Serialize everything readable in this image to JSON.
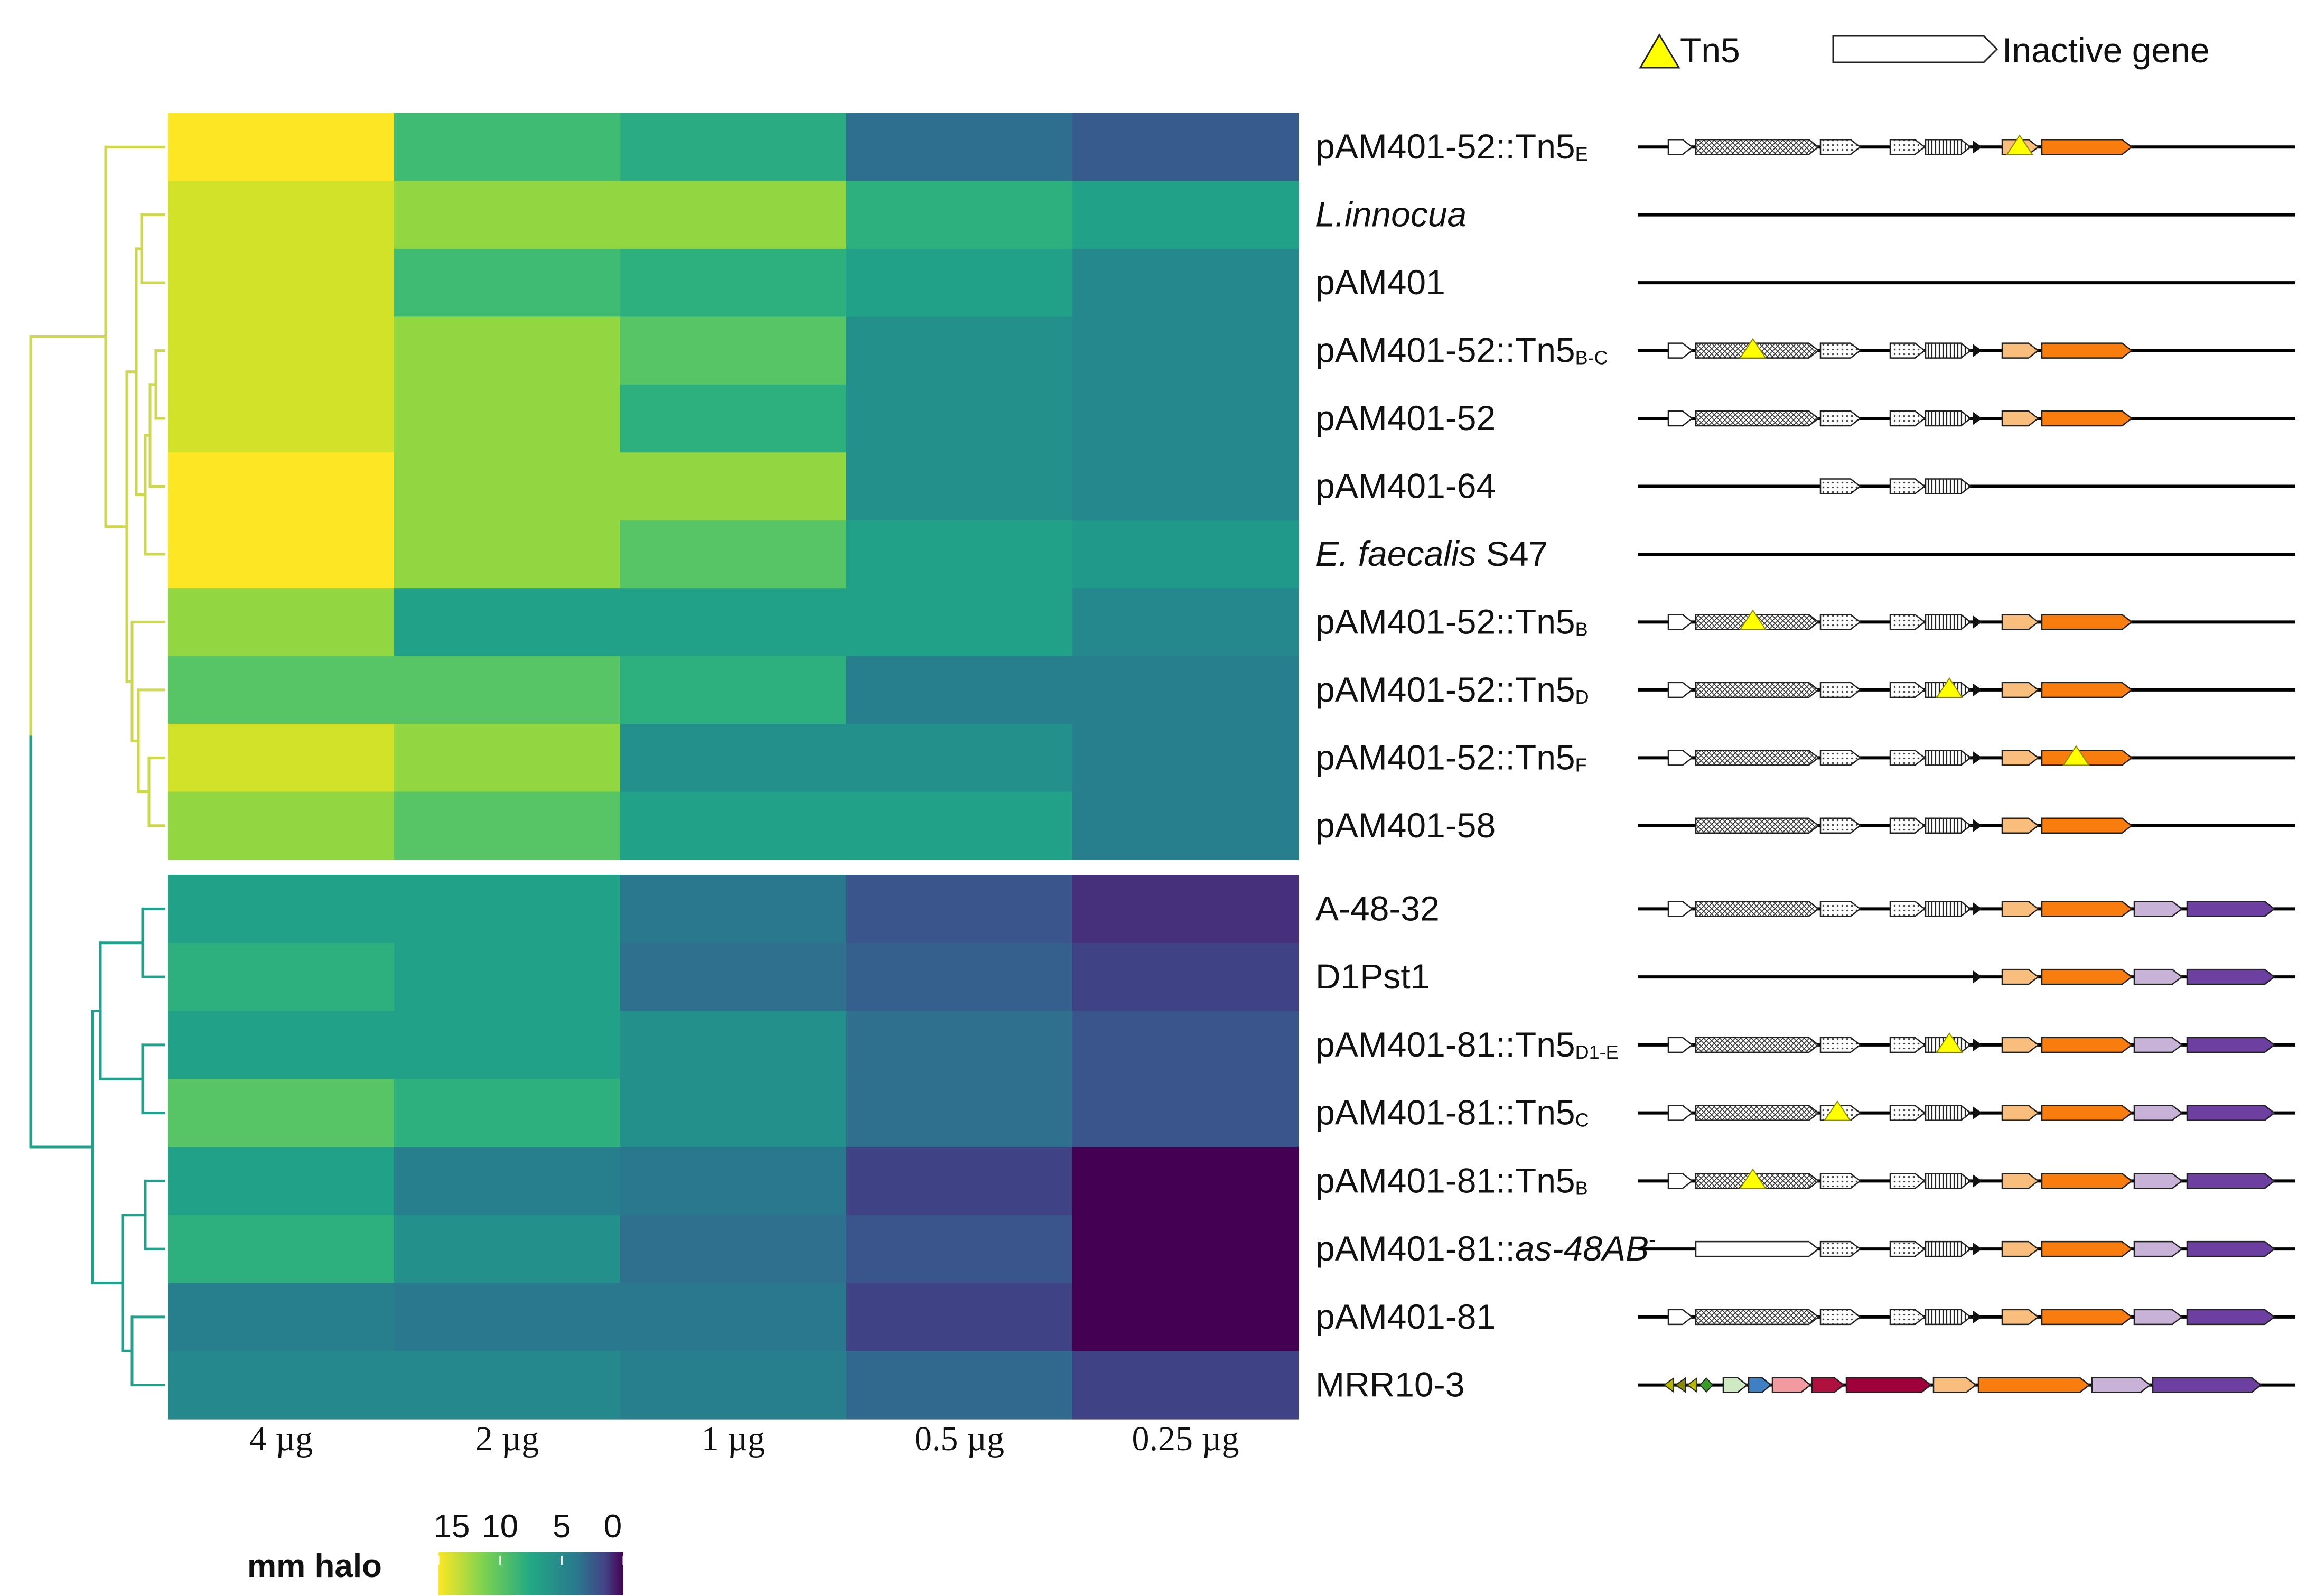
{
  "chart_data": {
    "type": "heatmap",
    "title": "",
    "columns": [
      "4 µg",
      "2 µg",
      "1 µg",
      "0.5 µg",
      "0.25 µg"
    ],
    "value_unit": "mm halo",
    "scale_range": [
      0,
      15
    ],
    "scale_ticks": [
      "15",
      "10",
      "5",
      "0"
    ],
    "colormap": "viridis",
    "cluster_colors": {
      "upper": "#cdd84c",
      "lower": "#23a08c"
    },
    "groups": [
      {
        "name": "upper",
        "rows": [
          {
            "label": "pAM401-52::Tn5",
            "subscript": "E",
            "italic": false,
            "values": [
              15.2,
              10.3,
              9.2,
              5.4,
              4.3
            ]
          },
          {
            "label": "L.innocua",
            "subscript": "",
            "italic": true,
            "values": [
              14.0,
              12.5,
              12.5,
              9.5,
              8.5
            ]
          },
          {
            "label": "pAM401",
            "subscript": "",
            "italic": false,
            "values": [
              14.0,
              10.3,
              9.5,
              8.5,
              7.0
            ]
          },
          {
            "label": "pAM401-52::Tn5",
            "subscript": "B-C",
            "italic": false,
            "values": [
              14.0,
              12.5,
              11.0,
              7.5,
              7.0
            ]
          },
          {
            "label": "pAM401-52",
            "subscript": "",
            "italic": false,
            "values": [
              14.0,
              12.5,
              9.5,
              7.5,
              7.0
            ]
          },
          {
            "label": "pAM401-64",
            "subscript": "",
            "italic": false,
            "values": [
              15.2,
              12.5,
              12.5,
              7.5,
              7.0
            ]
          },
          {
            "label": "E. faecalis",
            "suffix": " S47",
            "subscript": "",
            "italic": true,
            "values": [
              15.2,
              12.5,
              11.0,
              8.5,
              8.0
            ]
          },
          {
            "label": "pAM401-52::Tn5",
            "subscript": "B",
            "italic": false,
            "values": [
              12.5,
              8.5,
              8.5,
              8.5,
              7.0
            ]
          },
          {
            "label": "pAM401-52::Tn5",
            "subscript": "D",
            "italic": false,
            "values": [
              11.0,
              11.0,
              9.5,
              6.5,
              6.5
            ]
          },
          {
            "label": "pAM401-52::Tn5",
            "subscript": "F",
            "italic": false,
            "values": [
              14.0,
              12.5,
              7.5,
              7.5,
              6.5
            ]
          },
          {
            "label": "pAM401-58",
            "subscript": "",
            "italic": false,
            "values": [
              12.5,
              11.0,
              8.5,
              8.5,
              6.5
            ]
          }
        ]
      },
      {
        "name": "lower",
        "rows": [
          {
            "label": "A-48-32",
            "subscript": "",
            "italic": false,
            "values": [
              8.5,
              8.5,
              6.0,
              4.0,
              2.0
            ]
          },
          {
            "label": "D1Pst1",
            "subscript": "",
            "italic": false,
            "values": [
              9.5,
              8.5,
              5.5,
              4.5,
              3.0
            ]
          },
          {
            "label": "pAM401-81::Tn5",
            "subscript": "D1-E",
            "italic": false,
            "values": [
              8.5,
              8.5,
              7.5,
              5.5,
              4.0
            ]
          },
          {
            "label": "pAM401-81::Tn5",
            "subscript": "C",
            "italic": false,
            "values": [
              11.0,
              9.5,
              7.5,
              5.5,
              4.0
            ]
          },
          {
            "label": "pAM401-81::Tn5",
            "subscript": "B",
            "italic": false,
            "values": [
              8.5,
              6.5,
              6.0,
              3.0,
              0.0
            ]
          },
          {
            "label": "pAM401-81::",
            "italic_suffix": "as-48AB",
            "sup": "-",
            "subscript": "",
            "italic": false,
            "values": [
              9.5,
              7.5,
              5.5,
              4.0,
              0.0
            ]
          },
          {
            "label": "pAM401-81",
            "subscript": "",
            "italic": false,
            "values": [
              6.5,
              6.0,
              6.0,
              3.0,
              0.0
            ]
          },
          {
            "label": "MRR10-3",
            "subscript": "",
            "italic": false,
            "values": [
              7.0,
              7.0,
              6.5,
              5.0,
              3.0
            ]
          }
        ]
      }
    ],
    "legend": {
      "title": "mm halo",
      "placement": "bottom-left"
    }
  },
  "gene_legend": {
    "tn5_label": "Tn5",
    "inactive_label": "Inactive gene",
    "tn5_color": "#ffff00"
  },
  "gene_colors": {
    "light_orange": "#f9bd7d",
    "orange": "#f97c0f",
    "lavender": "#c8b2d8",
    "purple": "#6c3fa0",
    "yellow_green": "#b6b700",
    "olive": "#8a8a00",
    "green": "#3a9a2a",
    "light_green": "#cfe9c2",
    "blue": "#3f80c4",
    "pink": "#f39aa0",
    "crimson": "#b0103e",
    "dark_red": "#a0003a"
  }
}
